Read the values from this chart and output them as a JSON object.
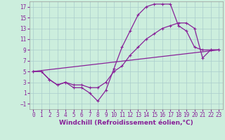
{
  "xlabel": "Windchill (Refroidissement éolien,°C)",
  "bg_color": "#cceedd",
  "grid_color": "#aacccc",
  "line_color": "#882299",
  "line1_x": [
    0,
    1,
    2,
    3,
    4,
    5,
    6,
    7,
    8,
    9,
    10,
    11,
    12,
    13,
    14,
    15,
    16,
    17,
    18,
    19,
    20,
    21,
    22,
    23
  ],
  "line1_y": [
    5,
    5,
    3.5,
    2.5,
    3,
    2,
    2,
    1,
    -0.5,
    1.5,
    5.5,
    9.5,
    12.5,
    15.5,
    17,
    17.5,
    17.5,
    17.5,
    13.5,
    12.5,
    9.5,
    9,
    9,
    9
  ],
  "line2_x": [
    0,
    1,
    2,
    3,
    4,
    5,
    6,
    7,
    8,
    9,
    10,
    11,
    12,
    13,
    14,
    15,
    16,
    17,
    18,
    19,
    20,
    21,
    22,
    23
  ],
  "line2_y": [
    5,
    5,
    3.5,
    2.5,
    3,
    2.5,
    2.5,
    2,
    2,
    3,
    5,
    6,
    8,
    9.5,
    11,
    12,
    13,
    13.5,
    14,
    14,
    13,
    7.5,
    9,
    9
  ],
  "line3_x": [
    0,
    23
  ],
  "line3_y": [
    5,
    9
  ],
  "xlim": [
    -0.5,
    23.5
  ],
  "ylim": [
    -2,
    18
  ],
  "xticks": [
    0,
    1,
    2,
    3,
    4,
    5,
    6,
    7,
    8,
    9,
    10,
    11,
    12,
    13,
    14,
    15,
    16,
    17,
    18,
    19,
    20,
    21,
    22,
    23
  ],
  "yticks": [
    -1,
    1,
    3,
    5,
    7,
    9,
    11,
    13,
    15,
    17
  ],
  "xlabel_fontsize": 6.5,
  "tick_fontsize": 5.5
}
